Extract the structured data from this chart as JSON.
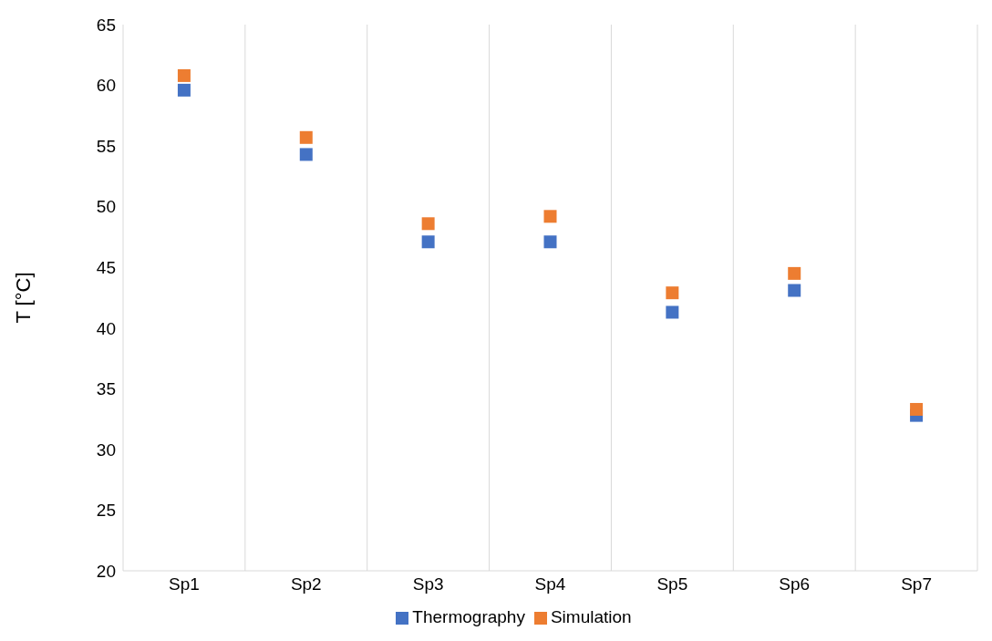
{
  "chart_data": {
    "type": "scatter",
    "ylabel": "T [°C]",
    "categories": [
      "Sp1",
      "Sp2",
      "Sp3",
      "Sp4",
      "Sp5",
      "Sp6",
      "Sp7"
    ],
    "series": [
      {
        "name": "Thermography",
        "color": "#4472c4",
        "values": [
          59.6,
          54.3,
          47.1,
          47.1,
          41.3,
          43.1,
          32.8
        ]
      },
      {
        "name": "Simulation",
        "color": "#ed7d31",
        "values": [
          60.8,
          55.7,
          48.6,
          49.2,
          42.9,
          44.5,
          33.3
        ]
      }
    ],
    "ylim": [
      20,
      65
    ],
    "yticks": [
      20,
      25,
      30,
      35,
      40,
      45,
      50,
      55,
      60,
      65
    ],
    "grid": "x",
    "legend": "bottom",
    "marker": "square"
  }
}
